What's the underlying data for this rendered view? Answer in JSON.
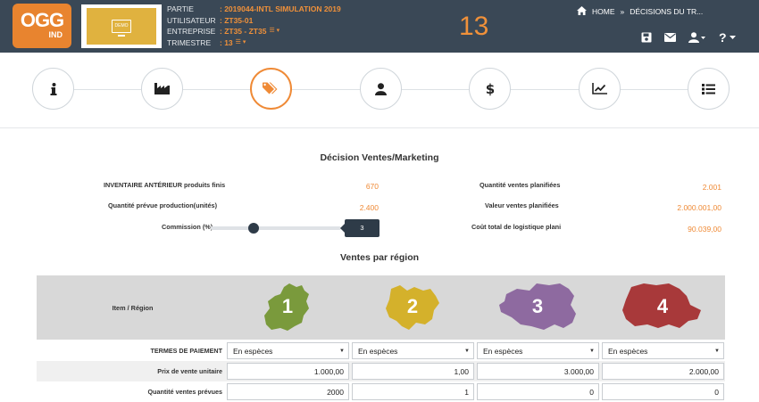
{
  "header": {
    "logo_text": "OGG",
    "logo_sub": "IND",
    "demo_label": "DEMO",
    "info": [
      {
        "key": "PARTIE",
        "value": ": 2019044-INTL SIMULATION 2019"
      },
      {
        "key": "UTILISATEUR",
        "value": ": ZT35-01"
      },
      {
        "key": "ENTREPRISE",
        "value": ": ZT35 - ZT35"
      },
      {
        "key": "TRIMESTRE",
        "value": ": 13"
      }
    ],
    "quarter_big": "13",
    "breadcrumb": {
      "home": "HOME",
      "sep": "»",
      "page": "DÉCISIONS DU TR..."
    },
    "help": "?"
  },
  "steps": [
    {
      "name": "info-icon"
    },
    {
      "name": "factory-icon"
    },
    {
      "name": "tags-icon"
    },
    {
      "name": "user-icon"
    },
    {
      "name": "dollar-icon"
    },
    {
      "name": "chart-line-icon"
    },
    {
      "name": "list-icon"
    }
  ],
  "section": {
    "title": "Décision Ventes/Marketing",
    "left": [
      {
        "label": "INVENTAIRE ANTÉRIEUR produits finis",
        "value": "670"
      },
      {
        "label": "Quantité prévue production(unités)",
        "value": "2.400"
      },
      {
        "label": "Commission (%)",
        "value": "3"
      }
    ],
    "right": [
      {
        "label": "Quantité ventes planifiées",
        "value": "2.001"
      },
      {
        "label": "Valeur ventes planifiées",
        "value": "2.000.001,00"
      },
      {
        "label": "Coût total de logistique plani",
        "value": "90.039,00"
      }
    ],
    "commission_level": 0.33
  },
  "regions": {
    "title": "Ventes par région",
    "header_label": "Item / Région",
    "items": [
      {
        "num": "1",
        "color": "#7a9a3c"
      },
      {
        "num": "2",
        "color": "#d4b12b"
      },
      {
        "num": "3",
        "color": "#8e6aa0"
      },
      {
        "num": "4",
        "color": "#a8393a"
      }
    ],
    "rows": {
      "payment": {
        "label": "TERMES DE PAIEMENT",
        "values": [
          "En espèces",
          "En espèces",
          "En espèces",
          "En espèces"
        ]
      },
      "price": {
        "label": "Prix de vente unitaire",
        "values": [
          "1.000,00",
          "1,00",
          "3.000,00",
          "2.000,00"
        ]
      },
      "qty": {
        "label": "Quantité ventes prévues",
        "values": [
          "2000",
          "1",
          "0",
          "0"
        ]
      }
    }
  },
  "colors": {
    "accent": "#ef8a36",
    "topbar": "#3a4856"
  }
}
